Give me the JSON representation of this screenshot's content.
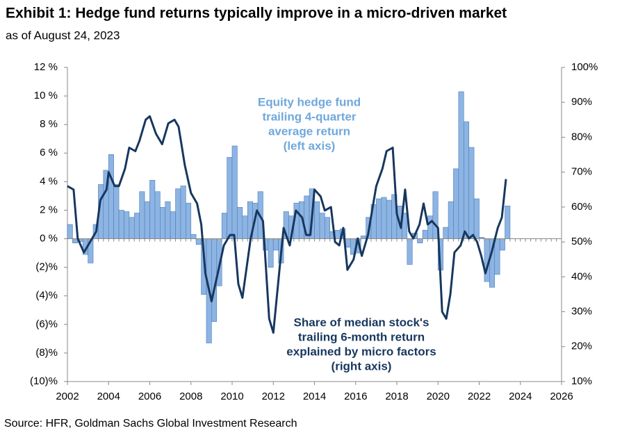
{
  "chart_data": {
    "type": "bar_line",
    "title": "Exhibit 1: Hedge fund returns typically improve in a micro-driven market",
    "subtitle": "as of August 24, 2023",
    "source": "Source: HFR, Goldman Sachs Global Investment Research",
    "xlim": [
      2002,
      2026
    ],
    "xticks": [
      2002,
      2004,
      2006,
      2008,
      2010,
      2012,
      2014,
      2016,
      2018,
      2020,
      2022,
      2024,
      2026
    ],
    "ylim": [
      -10,
      12
    ],
    "yticks": [
      {
        "value": 12,
        "label": "12 %"
      },
      {
        "value": 10,
        "label": "10 %"
      },
      {
        "value": 8,
        "label": "8 %"
      },
      {
        "value": 6,
        "label": "6 %"
      },
      {
        "value": 4,
        "label": "4 %"
      },
      {
        "value": 2,
        "label": "2 %"
      },
      {
        "value": 0,
        "label": "0 %"
      },
      {
        "value": -2,
        "label": "(2)%"
      },
      {
        "value": -4,
        "label": "(4)%"
      },
      {
        "value": -6,
        "label": "(6)%"
      },
      {
        "value": -8,
        "label": "(8)%"
      },
      {
        "value": -10,
        "label": "(10)%"
      }
    ],
    "y2lim": [
      10,
      100
    ],
    "y2ticks": [
      {
        "value": 100,
        "label": "100%"
      },
      {
        "value": 90,
        "label": "90%"
      },
      {
        "value": 80,
        "label": "80%"
      },
      {
        "value": 70,
        "label": "70%"
      },
      {
        "value": 60,
        "label": "60%"
      },
      {
        "value": 50,
        "label": "50%"
      },
      {
        "value": 40,
        "label": "40%"
      },
      {
        "value": 30,
        "label": "30%"
      },
      {
        "value": 20,
        "label": "20%"
      },
      {
        "value": 10,
        "label": "10%"
      }
    ],
    "series": [
      {
        "type": "bar",
        "color": "#8db4e2",
        "edge": "#4a7ebb",
        "x": [
          2002,
          2002.25,
          2002.5,
          2002.75,
          2003,
          2003.25,
          2003.5,
          2003.75,
          2004,
          2004.25,
          2004.5,
          2004.75,
          2005,
          2005.25,
          2005.5,
          2005.75,
          2006,
          2006.25,
          2006.5,
          2006.75,
          2007,
          2007.25,
          2007.5,
          2007.75,
          2008,
          2008.25,
          2008.5,
          2008.75,
          2009,
          2009.25,
          2009.5,
          2009.75,
          2010,
          2010.25,
          2010.5,
          2010.75,
          2011,
          2011.25,
          2011.5,
          2011.75,
          2012,
          2012.25,
          2012.5,
          2012.75,
          2013,
          2013.25,
          2013.5,
          2013.75,
          2014,
          2014.25,
          2014.5,
          2014.75,
          2015,
          2015.25,
          2015.5,
          2015.75,
          2016,
          2016.25,
          2016.5,
          2016.75,
          2017,
          2017.25,
          2017.5,
          2017.75,
          2018,
          2018.25,
          2018.5,
          2018.75,
          2019,
          2019.25,
          2019.5,
          2019.75,
          2020,
          2020.25,
          2020.5,
          2020.75,
          2021,
          2021.25,
          2021.5,
          2021.75,
          2022,
          2022.25,
          2022.5,
          2022.75,
          2023,
          2023.25
        ],
        "values": [
          1.0,
          -0.3,
          -0.2,
          -1.1,
          -1.7,
          1.0,
          3.8,
          4.8,
          5.9,
          3.8,
          2.0,
          1.9,
          1.5,
          1.8,
          3.3,
          2.6,
          4.1,
          3.3,
          2.2,
          2.6,
          1.9,
          3.5,
          3.7,
          2.5,
          0.3,
          -0.4,
          -3.9,
          -7.3,
          -5.8,
          -3.3,
          1.8,
          5.7,
          6.5,
          2.2,
          1.6,
          2.6,
          2.5,
          3.3,
          -0.8,
          -2.0,
          -0.8,
          -1.7,
          1.9,
          1.6,
          2.5,
          2.6,
          3.0,
          3.5,
          2.6,
          1.8,
          1.5,
          0.5,
          0.6,
          0.7,
          -0.6,
          -1.1,
          -1.0,
          0.2,
          1.5,
          2.4,
          2.8,
          2.9,
          2.7,
          3.1,
          2.3,
          1.8,
          -1.8,
          0.4,
          -0.3,
          0.6,
          1.6,
          3.3,
          -2.2,
          0.8,
          2.6,
          4.9,
          10.3,
          8.2,
          6.4,
          2.8,
          0.1,
          -3.0,
          -3.4,
          -2.5,
          -0.8,
          2.3
        ]
      },
      {
        "type": "line",
        "axis": "y2",
        "color": "#17375e",
        "x": [
          2002.0,
          2002.3,
          2002.5,
          2002.8,
          2003.1,
          2003.4,
          2003.6,
          2003.9,
          2004.0,
          2004.3,
          2004.5,
          2004.8,
          2005.0,
          2005.3,
          2005.5,
          2005.8,
          2006.0,
          2006.3,
          2006.6,
          2006.9,
          2007.2,
          2007.4,
          2007.7,
          2008.0,
          2008.3,
          2008.5,
          2008.7,
          2009.0,
          2009.3,
          2009.6,
          2009.9,
          2010.1,
          2010.3,
          2010.5,
          2010.9,
          2011.2,
          2011.5,
          2011.8,
          2012.0,
          2012.3,
          2012.5,
          2012.8,
          2013.1,
          2013.4,
          2013.6,
          2013.8,
          2014.0,
          2014.3,
          2014.5,
          2014.8,
          2015.0,
          2015.2,
          2015.4,
          2015.6,
          2015.9,
          2016.1,
          2016.3,
          2016.6,
          2016.8,
          2017.0,
          2017.3,
          2017.5,
          2017.8,
          2018.0,
          2018.2,
          2018.4,
          2018.6,
          2018.8,
          2019.1,
          2019.3,
          2019.5,
          2019.7,
          2020.0,
          2020.2,
          2020.4,
          2020.6,
          2020.8,
          2021.1,
          2021.3,
          2021.5,
          2021.7,
          2021.9,
          2022.1,
          2022.3,
          2022.6,
          2022.9,
          2023.1,
          2023.3
        ],
        "values": [
          66,
          65,
          51,
          47,
          50,
          53,
          62,
          65,
          70,
          66,
          66,
          71,
          77,
          76,
          79,
          85,
          86,
          81,
          78,
          84,
          85,
          83,
          72,
          64,
          61,
          55,
          41,
          33,
          41,
          49,
          52,
          52,
          38,
          34,
          51,
          59,
          56,
          28,
          24,
          42,
          54,
          49,
          59,
          57,
          52,
          52,
          65,
          63,
          59,
          60,
          50,
          49,
          54,
          42,
          45,
          51,
          46,
          52,
          59,
          66,
          71,
          76,
          77,
          58,
          54,
          65,
          53,
          51,
          55,
          61,
          55,
          56,
          54,
          30,
          28,
          35,
          47,
          49,
          53,
          51,
          52,
          50,
          46,
          41,
          47,
          54,
          57,
          68
        ]
      }
    ],
    "annotations": [
      {
        "color": "#6fa8dc",
        "lines": [
          "Equity hedge fund",
          "trailing 4-quarter",
          "average return",
          "(left axis)"
        ]
      },
      {
        "color": "#17375e",
        "lines": [
          "Share of median stock's",
          "trailing 6-month return",
          "explained by micro factors",
          "(right axis)"
        ]
      }
    ]
  }
}
